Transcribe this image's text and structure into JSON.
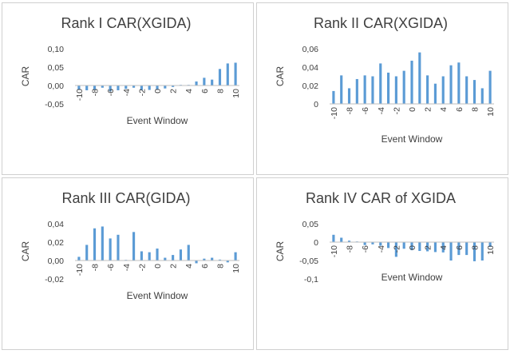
{
  "chart_data": [
    {
      "type": "bar",
      "title": "Rank I CAR(XGIDA)",
      "xlabel": "Event Window",
      "ylabel": "CAR",
      "ylim": [
        -0.05,
        0.1
      ],
      "yticks": [
        "-0,05",
        "0,00",
        "0,05",
        "0,10"
      ],
      "ytick_values": [
        -0.05,
        0,
        0.05,
        0.1
      ],
      "x": [
        -10,
        -9,
        -8,
        -7,
        -6,
        -5,
        -4,
        -3,
        -2,
        -1,
        0,
        1,
        2,
        3,
        4,
        5,
        6,
        7,
        8,
        9,
        10
      ],
      "xtick_labels": [
        "-10",
        "-8",
        "-6",
        "-4",
        "-2",
        "0",
        "2",
        "4",
        "6",
        "8",
        "10"
      ],
      "values": [
        -0.012,
        -0.013,
        -0.012,
        -0.006,
        -0.016,
        -0.013,
        -0.009,
        -0.006,
        -0.013,
        -0.012,
        -0.011,
        -0.008,
        -0.004,
        -0.001,
        0.0,
        0.011,
        0.021,
        0.016,
        0.045,
        0.06,
        0.062
      ],
      "grid": false,
      "legend": "none"
    },
    {
      "type": "bar",
      "title": "Rank II CAR(XGIDA)",
      "xlabel": "Event Window",
      "ylabel": "CAR",
      "ylim": [
        0,
        0.06
      ],
      "yticks": [
        "0",
        "0,02",
        "0,04",
        "0,06"
      ],
      "ytick_values": [
        0,
        0.02,
        0.04,
        0.06
      ],
      "x": [
        -10,
        -9,
        -8,
        -7,
        -6,
        -5,
        -4,
        -3,
        -2,
        -1,
        0,
        1,
        2,
        3,
        4,
        5,
        6,
        7,
        8,
        9,
        10
      ],
      "xtick_labels": [
        "-10",
        "-8",
        "-6",
        "-4",
        "-2",
        "0",
        "2",
        "4",
        "6",
        "8",
        "10"
      ],
      "values": [
        0.014,
        0.031,
        0.017,
        0.027,
        0.031,
        0.03,
        0.044,
        0.034,
        0.03,
        0.036,
        0.047,
        0.056,
        0.031,
        0.022,
        0.03,
        0.042,
        0.045,
        0.03,
        0.026,
        0.017,
        0.036
      ],
      "grid": false,
      "legend": "none"
    },
    {
      "type": "bar",
      "title": "Rank III CAR(GIDA)",
      "xlabel": "Event Window",
      "ylabel": "CAR",
      "ylim": [
        -0.02,
        0.04
      ],
      "yticks": [
        "-0,02",
        "0,00",
        "0,02",
        "0,04"
      ],
      "ytick_values": [
        -0.02,
        0,
        0.02,
        0.04
      ],
      "x": [
        -10,
        -9,
        -8,
        -7,
        -6,
        -5,
        -4,
        -3,
        -2,
        -1,
        0,
        1,
        2,
        3,
        4,
        5,
        6,
        7,
        8,
        9,
        10
      ],
      "xtick_labels": [
        "-10",
        "-8",
        "-6",
        "-4",
        "-2",
        "0",
        "2",
        "4",
        "6",
        "8",
        "10"
      ],
      "values": [
        0.004,
        0.017,
        0.035,
        0.037,
        0.024,
        0.028,
        0.0005,
        0.031,
        0.01,
        0.009,
        0.013,
        0.003,
        0.006,
        0.012,
        0.017,
        -0.003,
        0.002,
        0.003,
        0.001,
        -0.002,
        0.009
      ],
      "grid": false,
      "legend": "none"
    },
    {
      "type": "bar",
      "title": "Rank IV CAR of XGIDA",
      "xlabel": "Event Window",
      "ylabel": "CAR",
      "ylim": [
        -0.1,
        0.05
      ],
      "yticks": [
        "-0,1",
        "-0,05",
        "0",
        "0,05"
      ],
      "ytick_values": [
        -0.1,
        -0.05,
        0,
        0.05
      ],
      "x": [
        -10,
        -9,
        -8,
        -7,
        -6,
        -5,
        -4,
        -3,
        -2,
        -1,
        0,
        1,
        2,
        3,
        4,
        5,
        6,
        7,
        8,
        9,
        10
      ],
      "xtick_labels": [
        "-10",
        "-8",
        "-6",
        "-4",
        "-2",
        "0",
        "2",
        "4",
        "6",
        "8",
        "10"
      ],
      "values": [
        0.02,
        0.012,
        0.004,
        -0.001,
        -0.008,
        -0.006,
        -0.01,
        -0.016,
        -0.04,
        -0.018,
        -0.022,
        -0.024,
        -0.025,
        -0.027,
        -0.028,
        -0.05,
        -0.035,
        -0.035,
        -0.052,
        -0.05,
        -0.013
      ],
      "grid": false,
      "legend": "none"
    }
  ]
}
